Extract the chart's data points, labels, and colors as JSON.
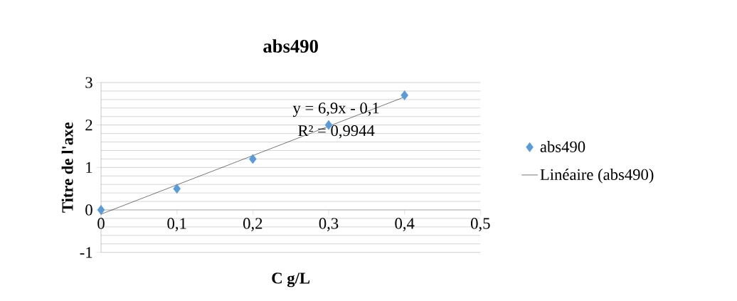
{
  "chart_data": {
    "type": "scatter",
    "title": "abs490",
    "xlabel": "C g/L",
    "ylabel": "Titre de l'axe",
    "xlim": [
      0,
      0.5
    ],
    "ylim": [
      -1,
      3
    ],
    "xticks": [
      0,
      {
        "value": 0.1,
        "label": "0,1"
      },
      {
        "value": 0.2,
        "label": "0,2"
      },
      {
        "value": 0.3,
        "label": "0,3"
      },
      {
        "value": 0.4,
        "label": "0,4"
      },
      {
        "value": 0.5,
        "label": "0,5"
      }
    ],
    "yticks": [
      -1,
      0,
      1,
      2,
      3
    ],
    "grid": "y",
    "legend": "right",
    "annotations": [
      "y = 6,9x - 0,1",
      "R² = 0,9944"
    ],
    "series": [
      {
        "name": "abs490",
        "color": "#5b9bd5",
        "marker": "diamond",
        "x": [
          0,
          0.1,
          0.2,
          0.3,
          0.4
        ],
        "values": [
          0,
          0.5,
          1.2,
          2.0,
          2.7
        ]
      },
      {
        "name": "Linéaire (abs490)",
        "type": "line",
        "color": "#000000",
        "marker": "none",
        "line_style": "solid",
        "x": [
          0,
          0.4
        ],
        "values": [
          -0.1,
          2.66
        ]
      }
    ]
  }
}
